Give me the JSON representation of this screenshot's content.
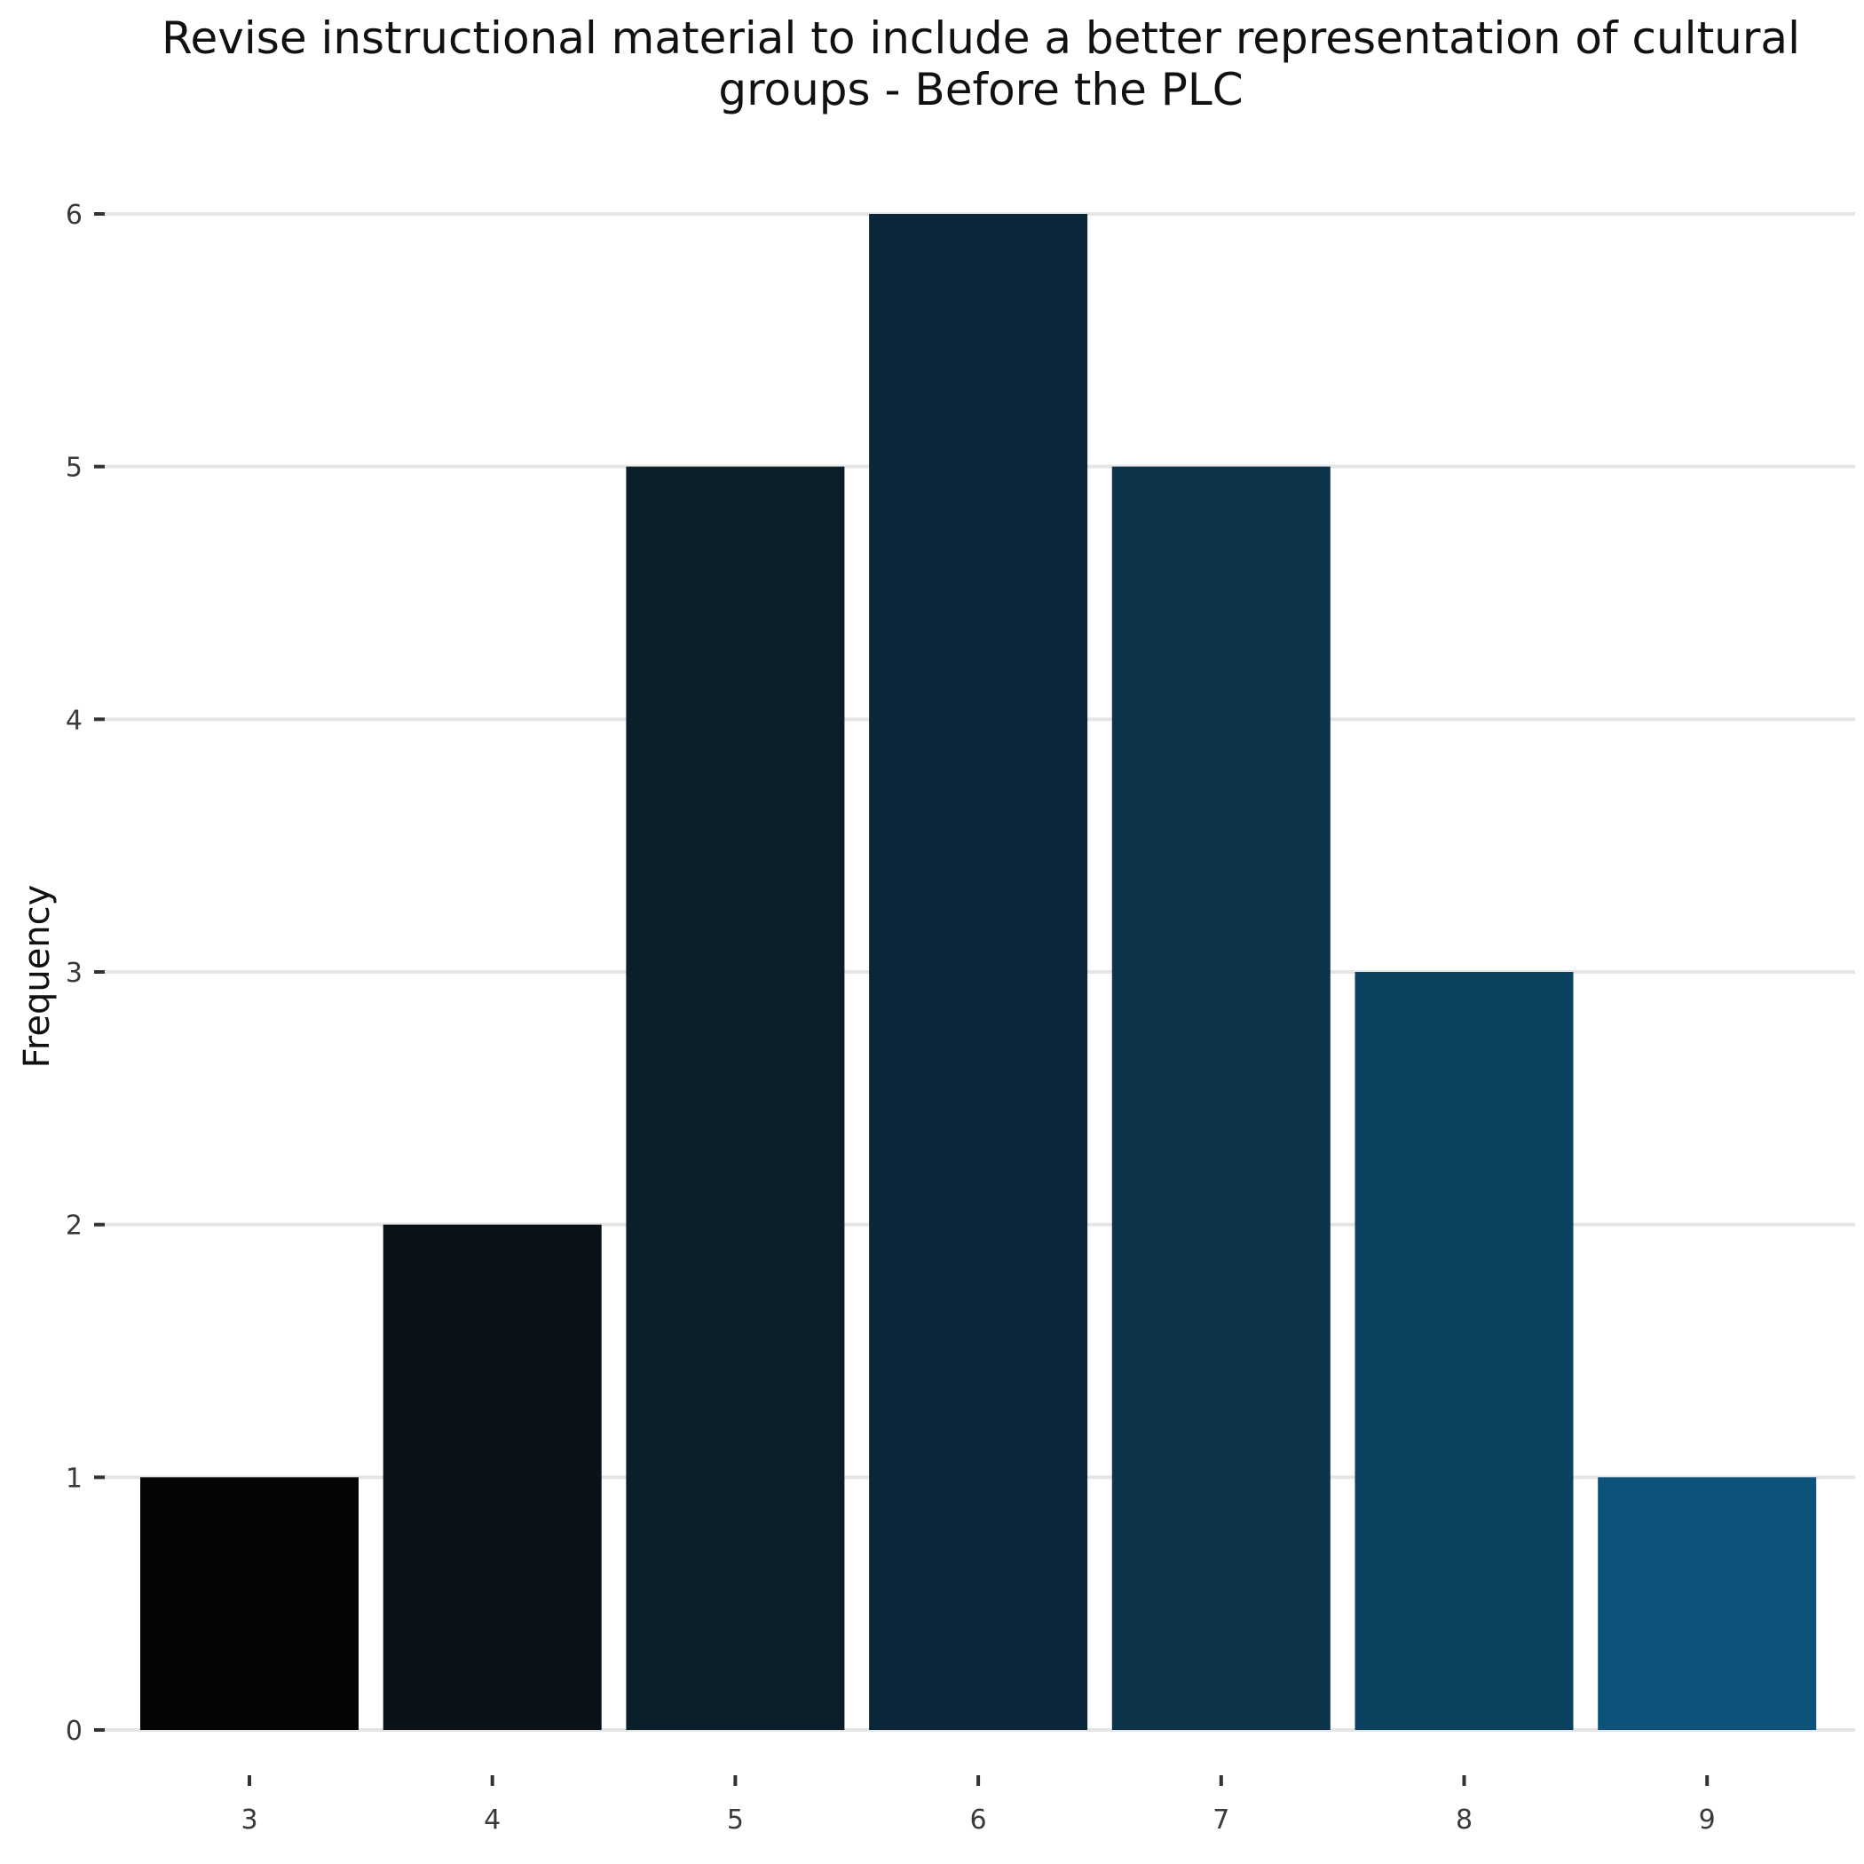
{
  "chart_data": {
    "type": "bar",
    "title": "Revise instructional material to include a better representation of cultural groups - Before the PLC",
    "title_lines": [
      "Revise instructional material to include a better representation of cultural",
      "groups - Before the PLC"
    ],
    "xlabel": "",
    "ylabel": "Frequency",
    "categories": [
      "3",
      "4",
      "5",
      "6",
      "7",
      "8",
      "9"
    ],
    "values": [
      1,
      2,
      5,
      6,
      5,
      3,
      1
    ],
    "colors": [
      "#050505",
      "#0a1219",
      "#0b1f2b",
      "#0a2638",
      "#0b344b",
      "#0c4260",
      "#0c527b"
    ],
    "ylim": [
      0,
      6
    ],
    "yticks": [
      0,
      1,
      2,
      3,
      4,
      5,
      6
    ],
    "grid": true,
    "legend": "none"
  }
}
